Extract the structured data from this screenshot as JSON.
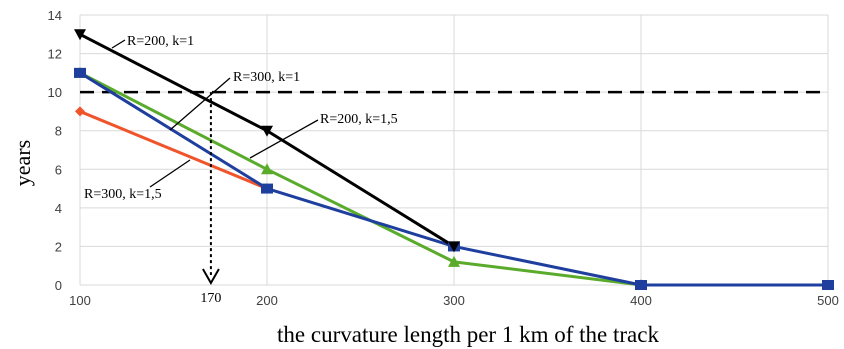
{
  "chart_data": {
    "type": "line",
    "xlabel": "the curvature length per 1 km of the track",
    "ylabel": "years",
    "x_ticks": [
      100,
      200,
      300,
      400,
      500
    ],
    "y_ticks": [
      0,
      2,
      4,
      6,
      8,
      10,
      12,
      14
    ],
    "xlim": [
      100,
      500
    ],
    "ylim": [
      0,
      14
    ],
    "grid": true,
    "reference_line": {
      "y": 10,
      "style": "dashed"
    },
    "marker": {
      "x": 170,
      "label": "170",
      "style": "dotted-arrow"
    },
    "series": [
      {
        "name": "R=200, k=1",
        "color": "#000000",
        "marker": "triangle-down",
        "x": [
          100,
          200,
          300
        ],
        "y": [
          13,
          8,
          2
        ]
      },
      {
        "name": "R=300, k=1",
        "color": "#1f3f9f",
        "marker": "square",
        "x": [
          100,
          200,
          300,
          400,
          500
        ],
        "y": [
          11,
          5,
          2,
          0,
          0
        ]
      },
      {
        "name": "R=200, k=1,5",
        "color": "#5aab2c",
        "marker": "triangle-up",
        "x": [
          100,
          200,
          300,
          400
        ],
        "y": [
          11,
          6,
          1.2,
          0
        ]
      },
      {
        "name": "R=300, k=1,5",
        "color": "#f0542a",
        "marker": "diamond",
        "x": [
          100,
          200
        ],
        "y": [
          9,
          5
        ]
      }
    ]
  }
}
